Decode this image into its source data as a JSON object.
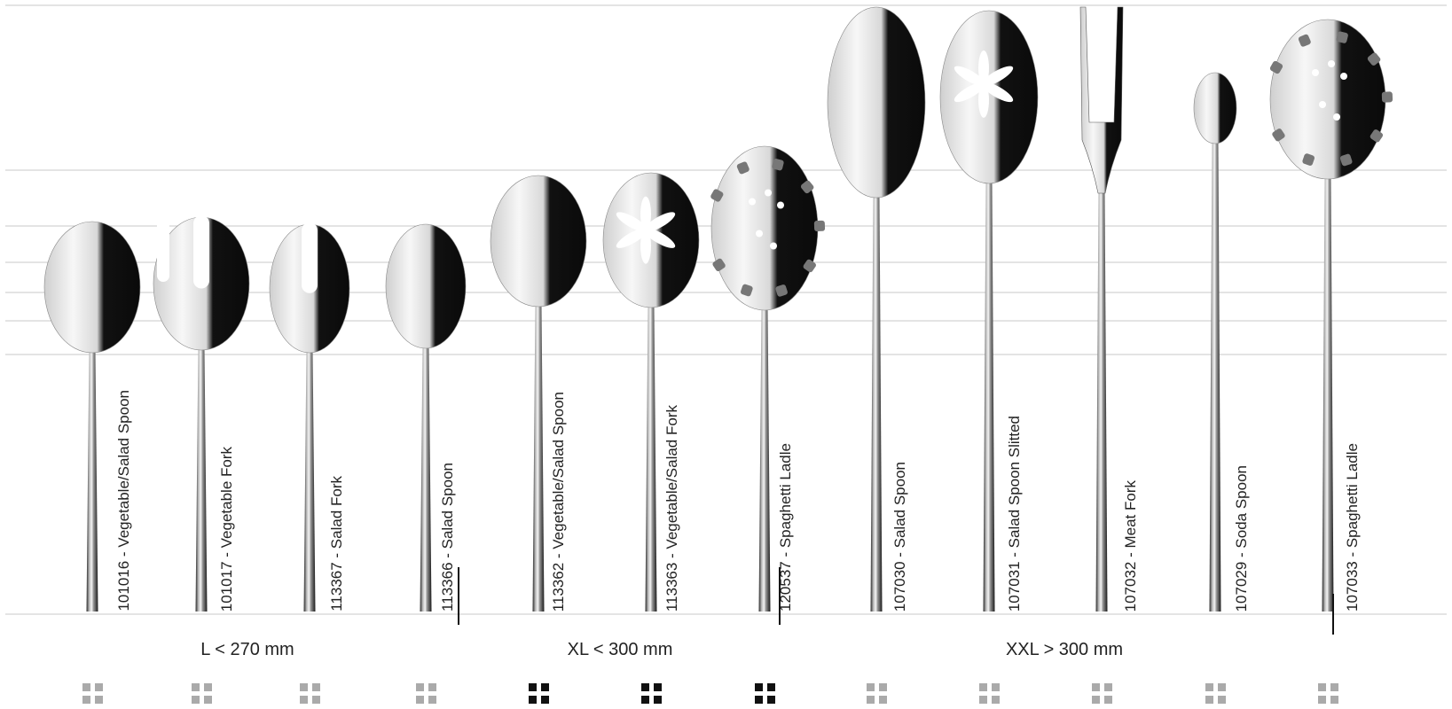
{
  "colors": {
    "active_icon": "#111111",
    "inactive_icon": "#aaaaaa",
    "line": "#c8c8c8"
  },
  "groups": [
    {
      "label": "L  < 270 mm",
      "active": false
    },
    {
      "label": "XL  < 300 mm",
      "active": true
    },
    {
      "label": "XXL  > 300 mm",
      "active": false
    }
  ],
  "items": [
    {
      "label": "101016 - Vegetable/Salad Spoon",
      "kind": "spoon",
      "group": 0,
      "icon": "grid-icon"
    },
    {
      "label": "101017 - Vegetable Fork",
      "kind": "fork",
      "group": 0,
      "icon": "grid-icon"
    },
    {
      "label": "113367 - Salad Fork",
      "kind": "salad-fork",
      "group": 0,
      "icon": "grid-icon"
    },
    {
      "label": "113366 - Salad Spoon",
      "kind": "spoon",
      "group": 0,
      "icon": "grid-icon"
    },
    {
      "label": "113362 - Vegetable/Salad Spoon",
      "kind": "spoon",
      "group": 1,
      "icon": "grid-icon"
    },
    {
      "label": "113363 - Vegetable/Salad Fork",
      "kind": "slotted",
      "group": 1,
      "icon": "grid-icon"
    },
    {
      "label": "120537 - Spaghetti Ladle",
      "kind": "spaghetti",
      "group": 1,
      "icon": "grid-icon"
    },
    {
      "label": "107030 - Salad Spoon",
      "kind": "spoon",
      "group": 2,
      "icon": "grid-icon"
    },
    {
      "label": "107031 - Salad Spoon Slitted",
      "kind": "slotted",
      "group": 2,
      "icon": "grid-icon"
    },
    {
      "label": "107032 - Meat Fork",
      "kind": "meat-fork",
      "group": 2,
      "icon": "grid-icon"
    },
    {
      "label": "107029 - Soda Spoon",
      "kind": "spoon",
      "group": 2,
      "icon": "grid-icon"
    },
    {
      "label": "107033 - Spaghetti Ladle",
      "kind": "spaghetti",
      "group": 2,
      "icon": "grid-icon"
    }
  ]
}
